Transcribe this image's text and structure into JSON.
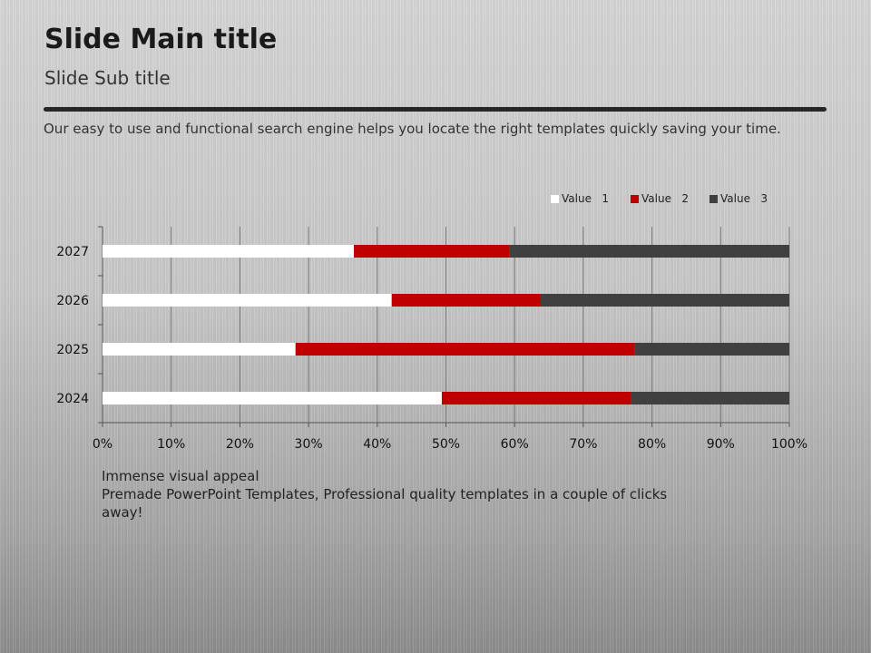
{
  "slide": {
    "title": "Slide Main title",
    "subtitle": "Slide Sub title",
    "description": "Our easy to use and functional search engine helps you locate the right templates quickly saving your time.",
    "notes": [
      "Immense visual appeal",
      "Premade PowerPoint Templates, Professional quality templates in a couple of clicks away!"
    ]
  },
  "chart_data": {
    "type": "bar",
    "orientation": "horizontal",
    "stacked": "percent",
    "categories": [
      "2024",
      "2025",
      "2026",
      "2027"
    ],
    "series": [
      {
        "name": "Value   1",
        "color": "#ffffff",
        "values": [
          49.4,
          28.1,
          42.1,
          36.6
        ]
      },
      {
        "name": "Value   2",
        "color": "#c00000",
        "values": [
          27.6,
          49.4,
          21.7,
          22.7
        ]
      },
      {
        "name": "Value   3",
        "color": "#404040",
        "values": [
          23.0,
          22.5,
          36.2,
          40.7
        ]
      }
    ],
    "xticks": [
      "0%",
      "10%",
      "20%",
      "30%",
      "40%",
      "50%",
      "60%",
      "70%",
      "80%",
      "90%",
      "100%"
    ],
    "xlim": [
      0,
      100
    ],
    "grid": true,
    "legend": "top-right"
  }
}
